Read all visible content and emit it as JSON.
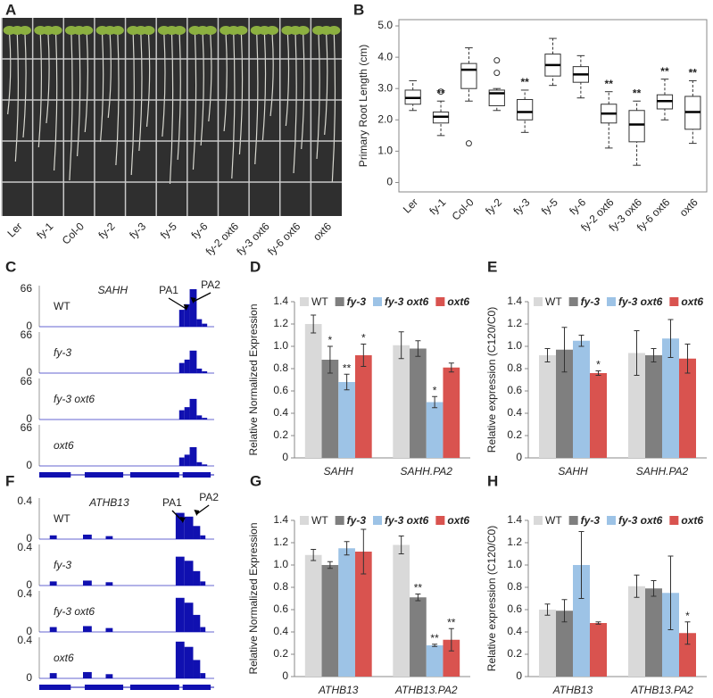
{
  "panel_labels": [
    "A",
    "B",
    "C",
    "D",
    "E",
    "F",
    "G",
    "H"
  ],
  "chart_data": [
    {
      "type": "box",
      "y_label": "Primary Root Length (cm)",
      "categories": [
        "Ler",
        "fy-1",
        "Col-0",
        "fy-2",
        "fy-3",
        "fy-5",
        "fy-6",
        "fy-2 oxt6",
        "fy-3 oxt6",
        "fy-6 oxt6",
        "oxt6"
      ],
      "whisker_low": [
        2.3,
        1.5,
        2.6,
        2.3,
        1.6,
        3.1,
        2.7,
        1.1,
        0.55,
        2.0,
        1.25
      ],
      "q1": [
        2.5,
        1.9,
        3.0,
        2.45,
        2.0,
        3.4,
        3.2,
        1.9,
        1.3,
        2.35,
        1.7
      ],
      "median": [
        2.7,
        2.1,
        3.6,
        2.85,
        2.25,
        3.75,
        3.45,
        2.2,
        1.85,
        2.6,
        2.25
      ],
      "q3": [
        2.95,
        2.25,
        3.8,
        2.95,
        2.65,
        4.1,
        3.7,
        2.5,
        2.3,
        2.8,
        2.75
      ],
      "whisker_high": [
        3.25,
        2.6,
        4.3,
        3.0,
        2.95,
        4.6,
        4.05,
        2.9,
        2.6,
        3.3,
        3.25
      ],
      "outliers": [
        [],
        [
          2.9
        ],
        [
          1.25
        ],
        [
          3.5,
          3.9
        ],
        [],
        [],
        [],
        [],
        [],
        [],
        []
      ],
      "significance": [
        null,
        "**",
        null,
        null,
        "**",
        null,
        null,
        "**",
        "**",
        "**",
        "**"
      ],
      "ylim": [
        -0.3,
        5.2
      ],
      "yticks": [
        0,
        {
          "value": 1,
          "label": "1.0"
        },
        {
          "value": 2,
          "label": "2.0"
        },
        {
          "value": 3,
          "label": "3.0"
        },
        {
          "value": 4,
          "label": "4.0"
        },
        {
          "value": 5,
          "label": "5.0"
        }
      ]
    },
    {
      "type": "bar",
      "y_label": "Relative Normalized Expression",
      "categories": [
        "SAHH",
        "SAHH.PA2"
      ],
      "series": [
        {
          "name": "WT",
          "color": "#d9d9d9",
          "values": [
            1.2,
            1.01
          ],
          "errors": [
            0.08,
            0.12
          ],
          "significance": [
            null,
            null
          ]
        },
        {
          "name": "fy-3",
          "color": "#7f7f7f",
          "values": [
            0.88,
            0.98
          ],
          "errors": [
            0.12,
            0.07
          ],
          "significance": [
            "*",
            null
          ]
        },
        {
          "name": "fy-3 oxt6",
          "color": "#9dc3e6",
          "values": [
            0.68,
            0.5
          ],
          "errors": [
            0.07,
            0.05
          ],
          "significance": [
            "**",
            "*"
          ]
        },
        {
          "name": "oxt6",
          "color": "#d9534f",
          "values": [
            0.92,
            0.81
          ],
          "errors": [
            0.1,
            0.04
          ],
          "significance": [
            "*",
            null
          ]
        }
      ],
      "ylim": [
        0,
        1.4
      ],
      "yticks": [
        0,
        0.2,
        0.4,
        0.6,
        0.8,
        {
          "value": 1,
          "label": "1.0"
        },
        1.2,
        1.4
      ]
    },
    {
      "type": "bar",
      "y_label": "Relative expression (C120/C0)",
      "categories": [
        "SAHH",
        "SAHH.PA2"
      ],
      "series": [
        {
          "name": "WT",
          "color": "#d9d9d9",
          "values": [
            0.92,
            0.94
          ],
          "errors": [
            0.06,
            0.2
          ],
          "significance": [
            null,
            null
          ]
        },
        {
          "name": "fy-3",
          "color": "#7f7f7f",
          "values": [
            0.97,
            0.92
          ],
          "errors": [
            0.2,
            0.06
          ],
          "significance": [
            null,
            null
          ]
        },
        {
          "name": "fy-3 oxt6",
          "color": "#9dc3e6",
          "values": [
            1.05,
            1.07
          ],
          "errors": [
            0.05,
            0.17
          ],
          "significance": [
            null,
            null
          ]
        },
        {
          "name": "oxt6",
          "color": "#d9534f",
          "values": [
            0.76,
            0.89
          ],
          "errors": [
            0.02,
            0.13
          ],
          "significance": [
            "*",
            null
          ]
        }
      ],
      "ylim": [
        0,
        1.4
      ],
      "yticks": [
        0,
        0.2,
        0.4,
        0.6,
        0.8,
        {
          "value": 1,
          "label": "1.0"
        },
        1.2,
        1.4
      ]
    },
    {
      "type": "bar",
      "y_label": "Relative Normalized Expression",
      "categories": [
        "ATHB13",
        "ATHB13.PA2"
      ],
      "series": [
        {
          "name": "WT",
          "color": "#d9d9d9",
          "values": [
            1.09,
            1.18
          ],
          "errors": [
            0.05,
            0.08
          ],
          "significance": [
            null,
            null
          ]
        },
        {
          "name": "fy-3",
          "color": "#7f7f7f",
          "values": [
            1.0,
            0.71
          ],
          "errors": [
            0.03,
            0.03
          ],
          "significance": [
            null,
            "**"
          ]
        },
        {
          "name": "fy-3 oxt6",
          "color": "#9dc3e6",
          "values": [
            1.15,
            0.28
          ],
          "errors": [
            0.06,
            0.01
          ],
          "significance": [
            null,
            "**"
          ]
        },
        {
          "name": "oxt6",
          "color": "#d9534f",
          "values": [
            1.12,
            0.33
          ],
          "errors": [
            0.2,
            0.1
          ],
          "significance": [
            null,
            "**"
          ]
        }
      ],
      "ylim": [
        0,
        1.4
      ],
      "yticks": [
        0,
        0.2,
        0.4,
        0.6,
        0.8,
        {
          "value": 1,
          "label": "1.0"
        },
        1.2,
        1.4
      ]
    },
    {
      "type": "bar",
      "y_label": "Relative expression (C120/C0)",
      "categories": [
        "ATHB13",
        "ATHB13.PA2"
      ],
      "series": [
        {
          "name": "WT",
          "color": "#d9d9d9",
          "values": [
            0.6,
            0.81
          ],
          "errors": [
            0.05,
            0.1
          ],
          "significance": [
            null,
            null
          ]
        },
        {
          "name": "fy-3",
          "color": "#7f7f7f",
          "values": [
            0.59,
            0.79
          ],
          "errors": [
            0.1,
            0.07
          ],
          "significance": [
            null,
            null
          ]
        },
        {
          "name": "fy-3 oxt6",
          "color": "#9dc3e6",
          "values": [
            1.0,
            0.75
          ],
          "errors": [
            0.3,
            0.33
          ],
          "significance": [
            null,
            null
          ]
        },
        {
          "name": "oxt6",
          "color": "#d9534f",
          "values": [
            0.48,
            0.39
          ],
          "errors": [
            0.01,
            0.1
          ],
          "significance": [
            null,
            "*"
          ]
        }
      ],
      "ylim": [
        0,
        1.4
      ],
      "yticks": [
        0,
        0.2,
        0.4,
        0.6,
        0.8,
        {
          "value": 1,
          "label": "1.0"
        },
        1.2,
        1.4
      ]
    }
  ],
  "tracks": [
    {
      "gene": "SAHH",
      "annotations": [
        "PA1",
        "PA2"
      ],
      "rows": [
        {
          "name": "WT",
          "yticks": [
            0,
            66
          ]
        },
        {
          "name": "fy-3",
          "yticks": [
            0,
            66
          ]
        },
        {
          "name": "fy-3 oxt6",
          "yticks": [
            0,
            66
          ]
        },
        {
          "name": "oxt6",
          "yticks": [
            0,
            66
          ]
        }
      ]
    },
    {
      "gene": "ATHB13",
      "annotations": [
        "PA1",
        "PA2"
      ],
      "rows": [
        {
          "name": "WT",
          "yticks": [
            0,
            0.4
          ]
        },
        {
          "name": "fy-3",
          "yticks": [
            0,
            0.4
          ]
        },
        {
          "name": "fy-3 oxt6",
          "yticks": [
            0,
            0.4
          ]
        },
        {
          "name": "oxt6",
          "yticks": [
            0,
            0.4
          ]
        }
      ]
    }
  ]
}
